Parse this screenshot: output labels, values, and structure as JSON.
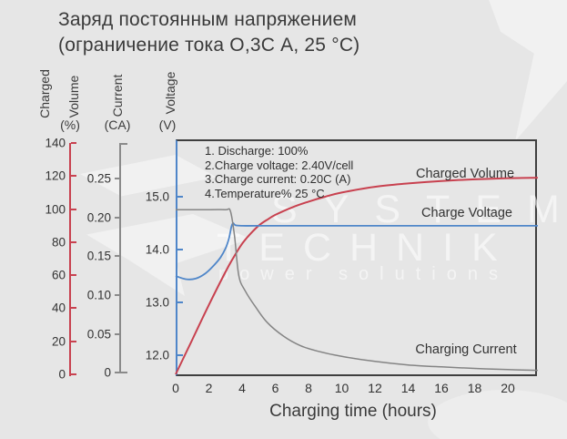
{
  "title": {
    "line1": "Заряд постоянным напряжением",
    "line2": "(ограничение тока О,3С А, 25 °С)"
  },
  "axes": {
    "charged_volume": {
      "word1": "Charged",
      "word2": "Volume",
      "unit": "(%)",
      "ticks": [
        "140",
        "120",
        "100",
        "80",
        "60",
        "40",
        "20",
        "0"
      ],
      "color": "#c8414f"
    },
    "current": {
      "label": "Current",
      "unit": "(CA)",
      "ticks": [
        "0.25",
        "0.20",
        "0.15",
        "0.10",
        "0.05",
        "0"
      ],
      "color": "#8a8a8a"
    },
    "voltage": {
      "label": "Voltage",
      "unit": "(V)",
      "ticks": [
        "15.0",
        "14.0",
        "13.0",
        "12.0"
      ],
      "color": "#4f86c9"
    },
    "x": {
      "label": "Charging time (hours)",
      "ticks": [
        "0",
        "2",
        "4",
        "6",
        "8",
        "10",
        "12",
        "14",
        "16",
        "18",
        "20"
      ]
    }
  },
  "notes": [
    "1. Discharge: 100%",
    "2.Charge voltage: 2.40V/cell",
    "3.Charge current: 0.20C (A)",
    "4.Temperature% 25 °C"
  ],
  "curve_labels": {
    "charged_volume": "Charged Volume",
    "charge_voltage": "Charge Voltage",
    "charging_current": "Charging Current"
  },
  "watermark": {
    "line1": "SYSTEM",
    "line2": "TECHNIK",
    "line3": "power solutions"
  },
  "chart_data": {
    "type": "line",
    "title": "Заряд постоянным напряжением (ограничение тока О,3С А, 25 °С)",
    "xlabel": "Charging time (hours)",
    "xlim": [
      0,
      21.8
    ],
    "x_ticks": [
      0,
      2,
      4,
      6,
      8,
      10,
      12,
      14,
      16,
      18,
      20
    ],
    "grid": false,
    "legend_position": "inline-labels",
    "annotations": [
      "1. Discharge: 100%",
      "2.Charge voltage: 2.40V/cell",
      "3.Charge current: 0.20C (A)",
      "4.Temperature% 25 °C"
    ],
    "series": [
      {
        "name": "Charged Volume",
        "axis": "percent",
        "unit": "%",
        "color": "#c8414f",
        "ylim": [
          0,
          140
        ],
        "yticks": [
          0,
          20,
          40,
          60,
          80,
          100,
          120,
          140
        ],
        "points": [
          [
            0,
            0
          ],
          [
            1,
            21
          ],
          [
            2,
            42
          ],
          [
            3,
            62
          ],
          [
            3.5,
            71
          ],
          [
            4,
            79
          ],
          [
            4.5,
            85
          ],
          [
            5,
            90
          ],
          [
            5.5,
            93.5
          ],
          [
            6,
            96.5
          ],
          [
            7,
            101
          ],
          [
            8,
            104.5
          ],
          [
            9,
            107.5
          ],
          [
            10,
            110
          ],
          [
            12,
            113.5
          ],
          [
            14,
            115.5
          ],
          [
            16,
            117
          ],
          [
            18,
            118
          ],
          [
            20,
            118.7
          ],
          [
            21.8,
            119
          ]
        ]
      },
      {
        "name": "Charge Voltage",
        "axis": "voltage",
        "unit": "V",
        "color": "#4f86c9",
        "ylim": [
          12,
          15
        ],
        "yticks": [
          12.0,
          13.0,
          14.0,
          15.0
        ],
        "points": [
          [
            0,
            13.5
          ],
          [
            0.6,
            13.44
          ],
          [
            1.2,
            13.45
          ],
          [
            1.8,
            13.55
          ],
          [
            2.3,
            13.7
          ],
          [
            2.7,
            13.85
          ],
          [
            3.0,
            14.02
          ],
          [
            3.2,
            14.2
          ],
          [
            3.35,
            14.42
          ],
          [
            3.45,
            14.5
          ],
          [
            3.6,
            14.46
          ],
          [
            4,
            14.45
          ],
          [
            5,
            14.45
          ],
          [
            8,
            14.45
          ],
          [
            12,
            14.45
          ],
          [
            16,
            14.45
          ],
          [
            21.8,
            14.45
          ]
        ]
      },
      {
        "name": "Charging Current",
        "axis": "current",
        "unit": "CA",
        "color": "#848484",
        "ylim": [
          0,
          0.25
        ],
        "yticks": [
          0,
          0.05,
          0.1,
          0.15,
          0.2,
          0.25
        ],
        "points": [
          [
            0,
            0.21
          ],
          [
            2,
            0.21
          ],
          [
            3.0,
            0.21
          ],
          [
            3.3,
            0.208
          ],
          [
            3.55,
            0.175
          ],
          [
            3.8,
            0.125
          ],
          [
            4.2,
            0.105
          ],
          [
            4.8,
            0.085
          ],
          [
            5.5,
            0.065
          ],
          [
            6.5,
            0.047
          ],
          [
            7.5,
            0.035
          ],
          [
            8.5,
            0.028
          ],
          [
            10,
            0.021
          ],
          [
            12,
            0.0145
          ],
          [
            14,
            0.01
          ],
          [
            16,
            0.0075
          ],
          [
            18,
            0.0055
          ],
          [
            20,
            0.004
          ],
          [
            21.8,
            0.003
          ]
        ]
      }
    ]
  }
}
